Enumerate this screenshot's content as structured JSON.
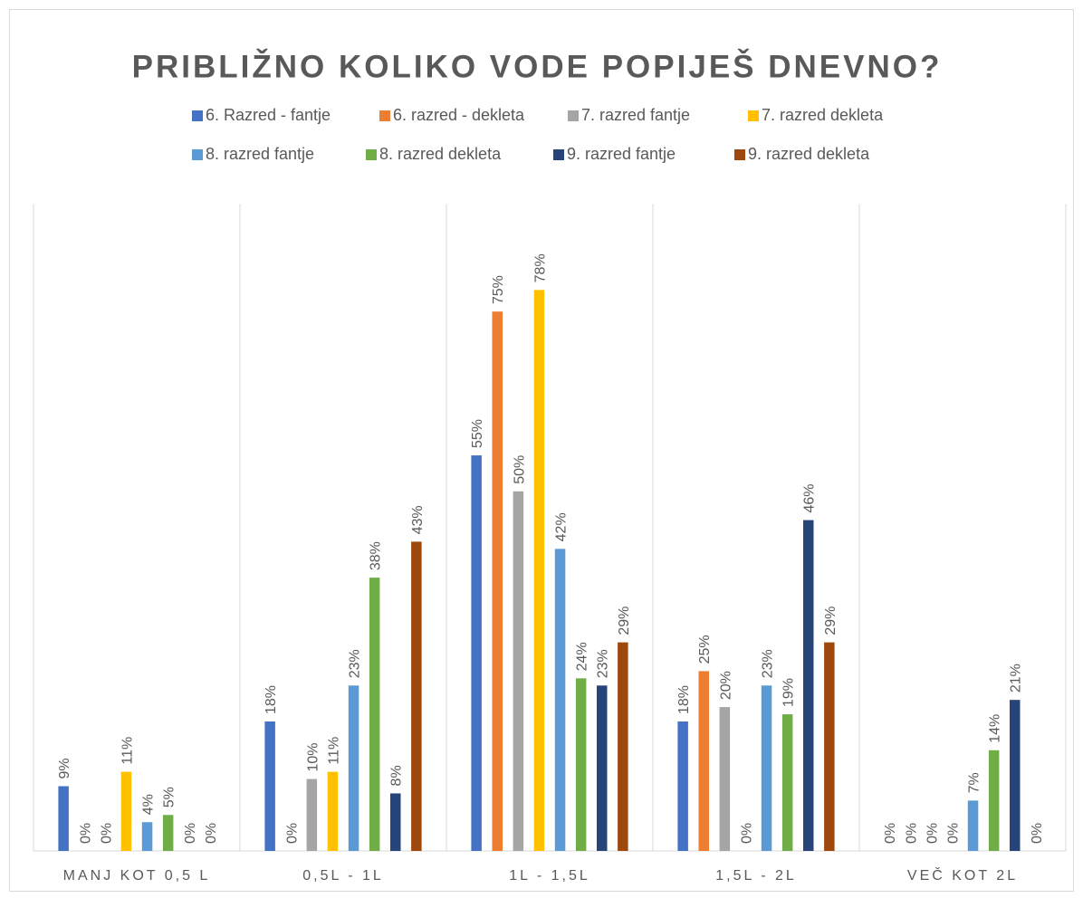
{
  "chart_data": {
    "type": "bar",
    "title": "PRIBLIŽNO KOLIKO VODE POPIJEŠ DNEVNO?",
    "categories": [
      "MANJ KOT 0,5 L",
      "0,5L - 1L",
      "1L - 1,5L",
      "1,5L - 2L",
      "VEČ KOT 2L"
    ],
    "ylim": [
      0,
      90
    ],
    "series": [
      {
        "name": "6. Razred - fantje",
        "color": "#4472c4",
        "values": [
          9,
          18,
          55,
          18,
          0
        ],
        "value_labels": [
          "9%",
          "18%",
          "55%",
          "18%",
          "0%"
        ]
      },
      {
        "name": "6. razred - dekleta",
        "color": "#ed7d31",
        "values": [
          0,
          0,
          75,
          25,
          0
        ],
        "value_labels": [
          "0%",
          "0%",
          "75%",
          "25%",
          "0%"
        ]
      },
      {
        "name": "7. razred fantje",
        "color": "#a5a5a5",
        "values": [
          0,
          10,
          50,
          20,
          0
        ],
        "value_labels": [
          "0%",
          "10%",
          "50%",
          "20%",
          "0%"
        ]
      },
      {
        "name": "7. razred dekleta",
        "color": "#ffc000",
        "values": [
          11,
          11,
          78,
          0,
          0
        ],
        "value_labels": [
          "11%",
          "11%",
          "78%",
          "0%",
          "0%"
        ]
      },
      {
        "name": "8. razred fantje",
        "color": "#5b9bd5",
        "values": [
          4,
          23,
          42,
          23,
          7
        ],
        "value_labels": [
          "4%",
          "23%",
          "42%",
          "23%",
          "7%"
        ]
      },
      {
        "name": "8. razred dekleta",
        "color": "#70ad47",
        "values": [
          5,
          38,
          24,
          19,
          14
        ],
        "value_labels": [
          "5%",
          "38%",
          "24%",
          "19%",
          "14%"
        ]
      },
      {
        "name": "9. razred fantje",
        "color": "#264478",
        "values": [
          0,
          8,
          23,
          46,
          21
        ],
        "value_labels": [
          "0%",
          "8%",
          "23%",
          "46%",
          "21%"
        ]
      },
      {
        "name": "9. razred dekleta",
        "color": "#9e480e",
        "values": [
          0,
          43,
          29,
          29,
          0
        ],
        "value_labels": [
          "0%",
          "43%",
          "29%",
          "29%",
          "0%"
        ]
      }
    ]
  }
}
